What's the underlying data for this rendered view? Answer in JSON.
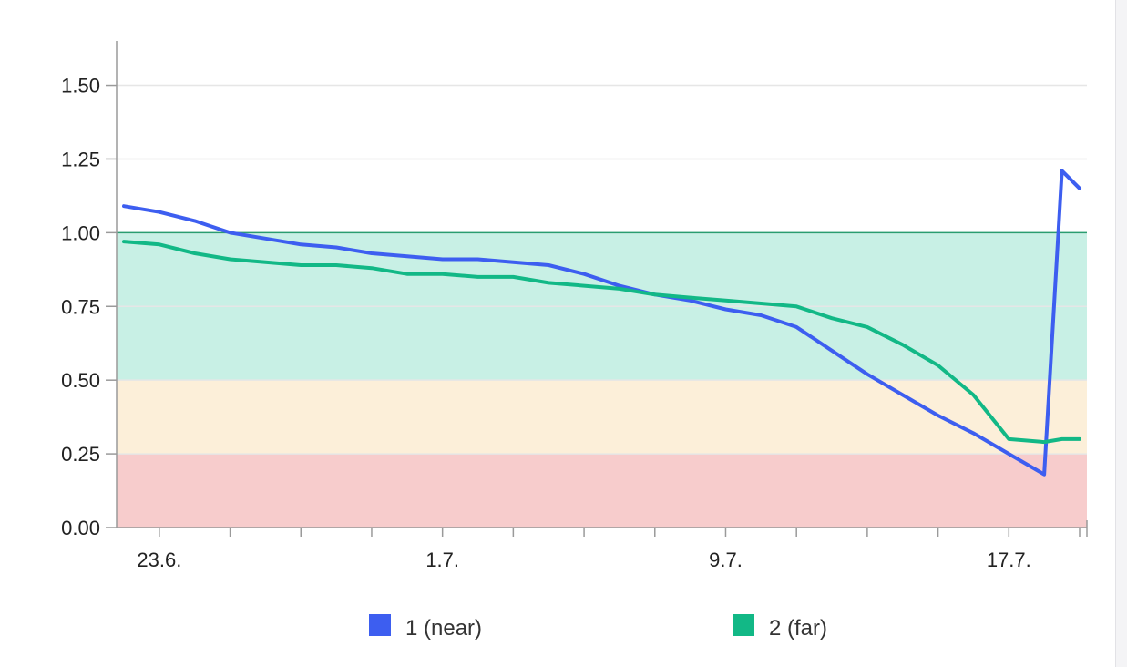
{
  "chart_data": {
    "type": "line",
    "title": "",
    "xlabel": "",
    "ylabel": "",
    "ylim": [
      0,
      1.65
    ],
    "y_ticks": [
      "0.00",
      "0.25",
      "0.50",
      "0.75",
      "1.00",
      "1.25",
      "1.50"
    ],
    "y_tick_values": [
      0,
      0.25,
      0.5,
      0.75,
      1.0,
      1.25,
      1.5
    ],
    "x_range": [
      "2024-06-22",
      "2024-07-19"
    ],
    "x_ticks": [
      {
        "date": "2024-06-23",
        "label": "23.6."
      },
      {
        "date": "2024-07-01",
        "label": "1.7."
      },
      {
        "date": "2024-07-09",
        "label": "9.7."
      },
      {
        "date": "2024-07-17",
        "label": "17.7."
      }
    ],
    "bands": [
      {
        "from": 0,
        "to": 0.25,
        "color": "#f7cccc"
      },
      {
        "from": 0.25,
        "to": 0.5,
        "color": "#fcefd9"
      },
      {
        "from": 0.5,
        "to": 1.0,
        "color": "#c8f0e5"
      }
    ],
    "reference_line": {
      "value": 1.0,
      "color": "#2a9d70"
    },
    "grid": true,
    "legend_position": "bottom",
    "series": [
      {
        "name": "1 (near)",
        "color": "#3d5ef0",
        "points": [
          [
            "2024-06-22",
            1.09
          ],
          [
            "2024-06-23",
            1.07
          ],
          [
            "2024-06-24",
            1.04
          ],
          [
            "2024-06-25",
            1.0
          ],
          [
            "2024-06-26",
            0.98
          ],
          [
            "2024-06-27",
            0.96
          ],
          [
            "2024-06-28",
            0.95
          ],
          [
            "2024-06-29",
            0.93
          ],
          [
            "2024-06-30",
            0.92
          ],
          [
            "2024-07-01",
            0.91
          ],
          [
            "2024-07-02",
            0.91
          ],
          [
            "2024-07-03",
            0.9
          ],
          [
            "2024-07-04",
            0.89
          ],
          [
            "2024-07-05",
            0.86
          ],
          [
            "2024-07-06",
            0.82
          ],
          [
            "2024-07-07",
            0.79
          ],
          [
            "2024-07-08",
            0.77
          ],
          [
            "2024-07-09",
            0.74
          ],
          [
            "2024-07-10",
            0.72
          ],
          [
            "2024-07-11",
            0.68
          ],
          [
            "2024-07-12",
            0.6
          ],
          [
            "2024-07-13",
            0.52
          ],
          [
            "2024-07-14",
            0.45
          ],
          [
            "2024-07-15",
            0.38
          ],
          [
            "2024-07-16",
            0.32
          ],
          [
            "2024-07-17",
            0.25
          ],
          [
            "2024-07-18",
            0.18
          ],
          [
            "2024-07-18.5",
            1.21
          ],
          [
            "2024-07-19",
            1.15
          ]
        ]
      },
      {
        "name": "2 (far)",
        "color": "#12b886",
        "points": [
          [
            "2024-06-22",
            0.97
          ],
          [
            "2024-06-23",
            0.96
          ],
          [
            "2024-06-24",
            0.93
          ],
          [
            "2024-06-25",
            0.91
          ],
          [
            "2024-06-26",
            0.9
          ],
          [
            "2024-06-27",
            0.89
          ],
          [
            "2024-06-28",
            0.89
          ],
          [
            "2024-06-29",
            0.88
          ],
          [
            "2024-06-30",
            0.86
          ],
          [
            "2024-07-01",
            0.86
          ],
          [
            "2024-07-02",
            0.85
          ],
          [
            "2024-07-03",
            0.85
          ],
          [
            "2024-07-04",
            0.83
          ],
          [
            "2024-07-05",
            0.82
          ],
          [
            "2024-07-06",
            0.81
          ],
          [
            "2024-07-07",
            0.79
          ],
          [
            "2024-07-08",
            0.78
          ],
          [
            "2024-07-09",
            0.77
          ],
          [
            "2024-07-10",
            0.76
          ],
          [
            "2024-07-11",
            0.75
          ],
          [
            "2024-07-12",
            0.71
          ],
          [
            "2024-07-13",
            0.68
          ],
          [
            "2024-07-14",
            0.62
          ],
          [
            "2024-07-15",
            0.55
          ],
          [
            "2024-07-16",
            0.45
          ],
          [
            "2024-07-17",
            0.3
          ],
          [
            "2024-07-18",
            0.29
          ],
          [
            "2024-07-18.5",
            0.3
          ],
          [
            "2024-07-19",
            0.3
          ]
        ]
      }
    ]
  }
}
